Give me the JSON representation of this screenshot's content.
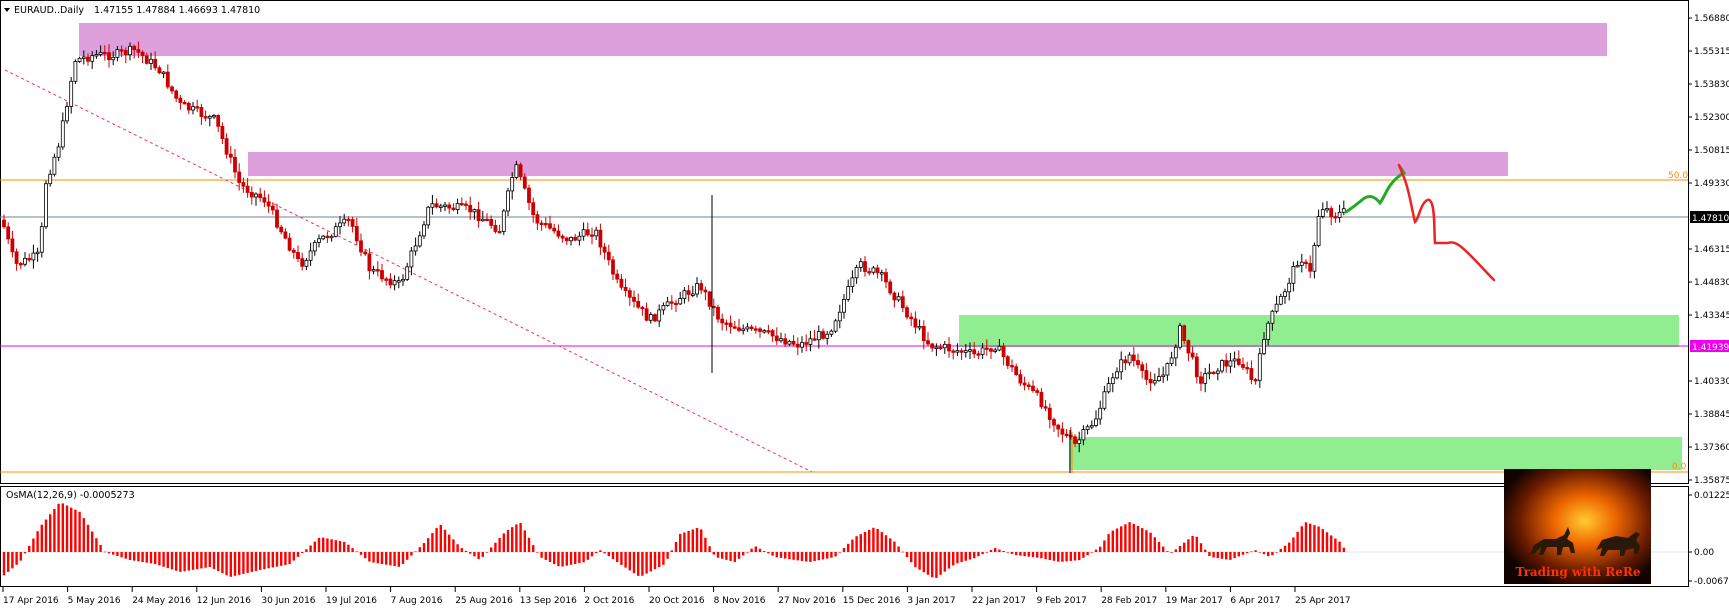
{
  "header": {
    "symbol": "EURAUD..Daily",
    "ohlc": "1.47155 1.47884 1.46693 1.47810"
  },
  "price_axis": {
    "ticks": [
      "1.56880",
      "1.55315",
      "1.53830",
      "1.52300",
      "1.50815",
      "1.49330",
      "1.47810",
      "1.46315",
      "1.44830",
      "1.43345",
      "1.41939",
      "1.40330",
      "1.38845",
      "1.37360",
      "1.35875"
    ],
    "current_price": "1.47810",
    "hline_price": "1.41939"
  },
  "date_axis": [
    "17 Apr 2016",
    "5 May 2016",
    "24 May 2016",
    "12 Jun 2016",
    "30 Jun 2016",
    "19 Jul 2016",
    "7 Aug 2016",
    "25 Aug 2016",
    "13 Sep 2016",
    "2 Oct 2016",
    "20 Oct 2016",
    "8 Nov 2016",
    "27 Nov 2016",
    "15 Dec 2016",
    "3 Jan 2017",
    "22 Jan 2017",
    "9 Feb 2017",
    "28 Feb 2017",
    "19 Mar 2017",
    "6 Apr 2017",
    "25 Apr 2017"
  ],
  "fib": {
    "level_50": "50.0",
    "level_0": "0.0"
  },
  "indicator": {
    "label": "OsMA(12,26,9) -0.0005273",
    "ticks": [
      "0.012250",
      "0.00",
      "-0.006740"
    ]
  },
  "logo": {
    "text": "Trading with ReRe"
  },
  "colors": {
    "up_candle": "#000000",
    "down_candle": "#cc0000",
    "resistance_zone": "#dda0dd",
    "support_zone": "#90ee90",
    "osma_bar": "#ff0000",
    "forecast_up": "#22aa22",
    "forecast_down": "#ee2222",
    "fib_line": "#ff8c00",
    "hline": "#ee00ee"
  }
}
